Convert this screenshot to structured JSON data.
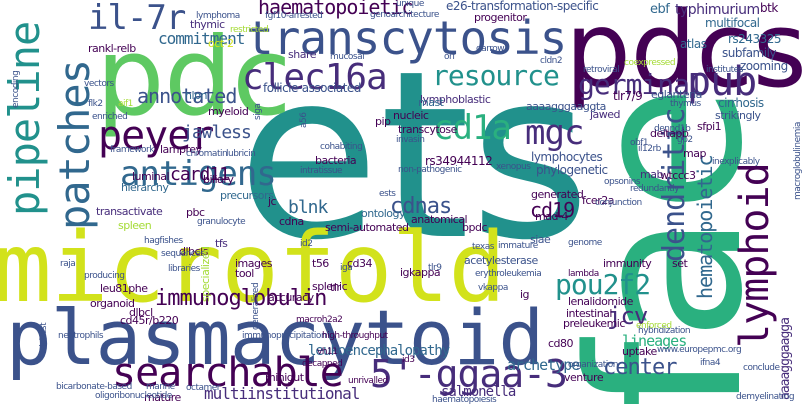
{
  "palette": {
    "yellow": "#d2e21b",
    "lime": "#a5db36",
    "green": "#5ec962",
    "teal": "#21918c",
    "blue": "#3b528b",
    "dark_blue": "#31688e",
    "purple": "#472d7b",
    "dark_purple": "#440154",
    "cyan_green": "#2ab07f",
    "light_green": "#7ad151"
  },
  "words": {
    "ets": "ets",
    "fae": "fae",
    "pdcs": "pdcs",
    "pdc": "pdc",
    "microfold": "microfold",
    "plasmacytoid": "plasmacytoid",
    "transcytosis": "transcytosis",
    "pipeline": "pipeline",
    "patches": "patches",
    "peyer": "peyer",
    "antigens": "antigens",
    "searchable": "searchable",
    "ggaa3": "5'-ggaa-3",
    "lymphoid": "lymphoid",
    "dendritic": "dendritic",
    "il7r": "il-7r",
    "clec16a": "clec16a",
    "resource": "resource",
    "germinal": "germinal",
    "pub": "pub",
    "cd1a": "cd1a",
    "mgc": "mgc",
    "pou2f2": "pou2f2",
    "immunoglobulin": "immunoglobulin",
    "haematopoietic": "haematopoietic",
    "commitment": "commitment",
    "annotated": "annotated",
    "jawless": "jawless",
    "card11": "card11",
    "blnk": "blnk",
    "cdnas": "cdnas",
    "cd19": "cd19",
    "jcv": "jcv",
    "center": "center",
    "hematopoietic": "hematopoietic",
    "leukoencephalopathy": "leukoencephalopathy",
    "multiinstitutional": "multiinstitutional",
    "archetype": "archetype",
    "lineages": "lineages",
    "salmonella": "salmonella",
    "aaaagggaagg": "aaaagggaagga",
    "e26": "e26-transformation-specific",
    "typhimurium": "typhimurium",
    "ebf": "ebf",
    "multifocal": "multifocal",
    "rs243325": "rs243325",
    "subfamily": "subfamily",
    "zooming": "zooming",
    "atlas": "atlas",
    "cirrhosis": "cirrhosis",
    "strikingly": "strikingly",
    "sfpi1": "sfpi1",
    "btk": "btk",
    "eglanteria": "eglanteria",
    "tlr79": "tlr7/9",
    "jawed": "jawed",
    "follicle": "follicle-associated",
    "lymphoblastic": "lymphoblastic",
    "mast": "mast",
    "aaaagggaaggta": "aaaagggaaggta",
    "nucleic": "nucleic",
    "lymphocytes": "lymphocytes",
    "phylogenetic": "phylogenetic",
    "rs34944112": "rs34944112",
    "lamprey": "lamprey",
    "myeloid": "myeloid",
    "hlpn": "hlpn",
    "rankl": "rankl-relb",
    "oct2": "oct-2",
    "thymic": "thymic",
    "progenitor": "progenitor",
    "share": "share",
    "pip": "pip",
    "transcytose": "transcytose",
    "bacteria": "bacteria",
    "biliary": "biliary",
    "precursors": "precursors",
    "luminal": "luminal",
    "hierarchy": "hierarchy",
    "jc": "jc",
    "cdna": "cdna",
    "ontology": "ontology",
    "anatomical": "anatomical",
    "generated": "generated",
    "fcer2a": "fcer2a",
    "mad4": "mad-4",
    "wtccc3": "wtccc3",
    "mab": "mab",
    "map": "map",
    "deltapb": "deltapb",
    "transactivate": "transactivate",
    "spleen": "spleen",
    "pbc": "pbc",
    "bpdc": "bpdc",
    "tfs": "tfs",
    "dlbcls": "dlbcls",
    "specialized": "specialized",
    "images": "images",
    "tool": "tool",
    "t56": "t56",
    "cd34": "cd34",
    "siae": "siae",
    "acetylesterase": "acetylesterase",
    "igkappa": "igkappa",
    "accuracy": "accuracy",
    "splenic": "splenic",
    "ig": "ig",
    "immunity": "immunity",
    "set": "set",
    "lenalidomide": "lenalidomide",
    "intestinal": "intestinal",
    "preleukemic": "preleukemic",
    "uptake": "uptake",
    "cd80": "cd80",
    "venture": "venture",
    "leu81phe": "leu81phe",
    "organoid": "organoid",
    "dlbcl": "dlbcl",
    "cd45r": "cd45r/b220",
    "minigut": "minigut",
    "mature": "mature",
    "semiautomated": "semi-automated",
    "tlr": "tlr",
    "lambda": "lambda",
    "erythroleukemia": "erythroleukemia",
    "granulocyte": "granulocyte",
    "hagfishes": "hagfishes",
    "generalized": "generalized",
    "immunoprecipitation": "immunoprecipitation",
    "highthroughput": "high-throughput",
    "macroh2a2": "macroh2a2",
    "decapped": "decapped",
    "unrivalled": "unrivalled",
    "id3": "id3",
    "neutrophils": "neutrophils",
    "richest": "richest",
    "bicarbonate": "bicarbonate-based",
    "marine": "marine",
    "octamer": "octamer",
    "oligoribonucleotide": "oligoribonucleotide",
    "hybridization": "hybridization",
    "haematopoiesis": "haematopoiesis",
    "organization": "organization",
    "enforced": "enforced",
    "conclude": "conclude",
    "demyelinating": "demyelinating",
    "ifna4": "ifna4",
    "europepmc": "www.europepmc.org",
    "vh11": "vh11",
    "texas": "texas",
    "vkappa": "vkappa",
    "libraries": "libraries",
    "sequences": "sequences",
    "producing": "producing",
    "raja": "raja",
    "tlr9": "tlr9",
    "id2": "id2",
    "iga": "iga",
    "immature": "immature",
    "genome": "genome",
    "opsonins": "opsonins",
    "redundantly": "redundantly",
    "conjunction": "conjunction",
    "il12rb": "il12rb",
    "xenopus": "xenopus",
    "nonpathogenic": "non-pathogenic",
    "intratissue": "intratissue",
    "ests": "ests",
    "chromatin": "chromatin",
    "lubricin": "lubricin",
    "framework": "framework",
    "cohabiting": "cohabiting",
    "invasin": "invasin",
    "a56": "a56",
    "mucosal": "mucosal",
    "orf": "orf",
    "cldn2": "cldn2",
    "retroviral": "retroviral",
    "coexpressed": "coexpressed",
    "institutes": "institutes",
    "thymus": "thymus",
    "dennd1b": "dennd1b",
    "gp2": "gp2",
    "obf1": "obf1",
    "inexplicably": "inexplicably",
    "macroglobulinemia": "macroglobulinemia",
    "unique": "unique",
    "genoarchitecture": "genoarchitecture",
    "fgf10": "fgf10-arrested",
    "lymphoma": "lymphoma",
    "restricted": "restricted",
    "flk2": "flk2",
    "enriched": "enriched",
    "vectors": "vectors",
    "encoding": "encoding",
    "siga": "siga",
    "aif1": "aif1",
    "darrow": "darrow"
  }
}
